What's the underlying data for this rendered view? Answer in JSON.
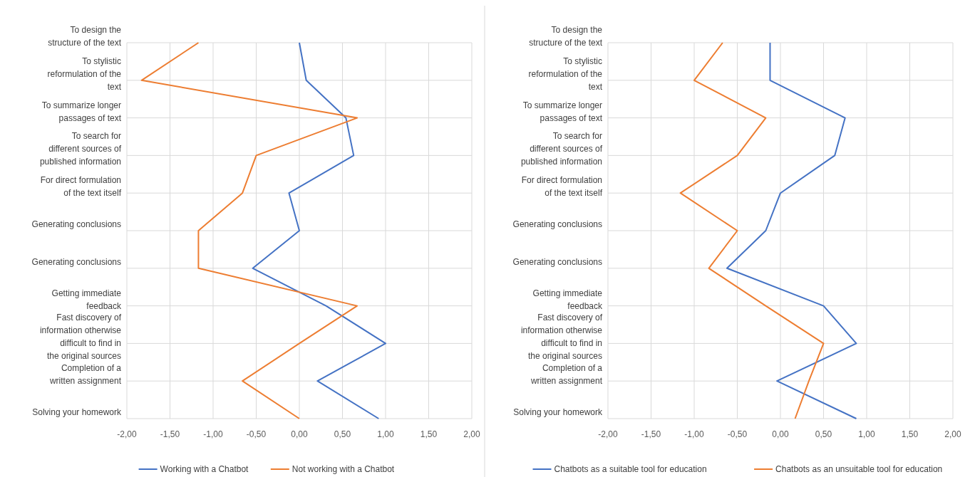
{
  "chart_data": [
    {
      "type": "line",
      "orientation": "horizontal",
      "categories": [
        "To design the structure of the text",
        "To stylistic reformulation of the text",
        "To summarize longer passages of text",
        "To search for different sources of published information",
        "For direct formulation of the text itself",
        "Generating conclusions",
        "Generating conclusions",
        "Getting immediate feedback",
        "Fast discovery of information otherwise difficult to find in the original sources",
        "Completion of a written assignment",
        "Solving your homework"
      ],
      "series": [
        {
          "name": "Working with a Chatbot",
          "color": "#4472c4",
          "values": [
            0.0,
            0.08,
            0.54,
            0.63,
            -0.12,
            0.0,
            -0.54,
            0.31,
            1.0,
            0.21,
            0.92
          ]
        },
        {
          "name": "Not working with a Chatbot",
          "color": "#ed7d31",
          "values": [
            -1.17,
            -1.83,
            0.67,
            -0.5,
            -0.66,
            -1.17,
            -1.17,
            0.67,
            0.0,
            -0.66,
            0.0
          ]
        }
      ],
      "xlim": [
        -2,
        2
      ],
      "xticks": [
        {
          "value": -2,
          "label": "-2,00"
        },
        {
          "value": -1.5,
          "label": "-1,50"
        },
        {
          "value": -1,
          "label": "-1,00"
        },
        {
          "value": -0.5,
          "label": "-0,50"
        },
        {
          "value": 0,
          "label": "0,00"
        },
        {
          "value": 0.5,
          "label": "0,50"
        },
        {
          "value": 1,
          "label": "1,00"
        },
        {
          "value": 1.5,
          "label": "1,50"
        },
        {
          "value": 2,
          "label": "2,00"
        }
      ],
      "grid": true,
      "legend": "bottom",
      "marker": "none",
      "line_style": "solid"
    },
    {
      "type": "line",
      "orientation": "horizontal",
      "categories": [
        "To design the structure of the text",
        "To stylistic reformulation of the text",
        "To summarize longer passages of text",
        "To search for different sources of published information",
        "For direct formulation of the text itself",
        "Generating conclusions",
        "Generating conclusions",
        "Getting immediate feedback",
        "Fast discovery of information otherwise difficult to find in the original sources",
        "Completion of a written assignment",
        "Solving your homework"
      ],
      "series": [
        {
          "name": "Chatbots as a suitable tool for education",
          "color": "#4472c4",
          "values": [
            -0.12,
            -0.12,
            0.75,
            0.63,
            0.0,
            -0.17,
            -0.62,
            0.5,
            0.88,
            -0.04,
            0.88
          ]
        },
        {
          "name": "Chatbots as an unsuitable tool for education",
          "color": "#ed7d31",
          "values": [
            -0.67,
            -1.0,
            -0.17,
            -0.5,
            -1.16,
            -0.5,
            -0.83,
            -0.17,
            0.5,
            0.33,
            0.17
          ]
        }
      ],
      "xlim": [
        -2,
        2
      ],
      "xticks": [
        {
          "value": -2,
          "label": "-2,00"
        },
        {
          "value": -1.5,
          "label": "-1,50"
        },
        {
          "value": -1,
          "label": "-1,00"
        },
        {
          "value": -0.5,
          "label": "-0,50"
        },
        {
          "value": 0,
          "label": "0,00"
        },
        {
          "value": 0.5,
          "label": "0,50"
        },
        {
          "value": 1,
          "label": "1,00"
        },
        {
          "value": 1.5,
          "label": "1,50"
        },
        {
          "value": 2,
          "label": "2,00"
        }
      ],
      "grid": true,
      "legend": "bottom",
      "marker": "none",
      "line_style": "solid"
    }
  ]
}
